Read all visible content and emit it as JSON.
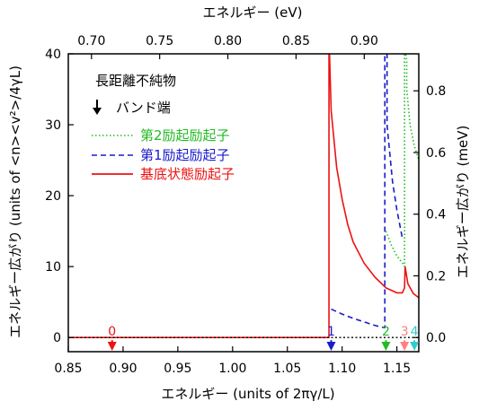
{
  "chart_data": {
    "type": "line",
    "xlabel": "エネルギー (units of 2πγ/L)",
    "ylabel": "エネルギー広がり (units of <n><v²>/4γL)",
    "x2label": "エネルギー (eV)",
    "y2label": "エネルギー広がり (meV)",
    "xlim": [
      0.85,
      1.17
    ],
    "ylim": [
      -2,
      40
    ],
    "x2lim": [
      0.683,
      0.94
    ],
    "y2lim": [
      -0.046,
      0.92
    ],
    "xticks": [
      "0.85",
      "0.90",
      "0.95",
      "1.00",
      "1.05",
      "1.10",
      "1.15"
    ],
    "yticks": [
      "0",
      "10",
      "20",
      "30",
      "40"
    ],
    "x2ticks": [
      "0.70",
      "0.75",
      "0.80",
      "0.85",
      "0.90"
    ],
    "y2ticks": [
      "0.0",
      "0.2",
      "0.4",
      "0.6",
      "0.8"
    ],
    "legend": {
      "title": "長距離不純物",
      "entries": [
        {
          "label": "バンド端",
          "style": "arrow",
          "color": "#000000"
        },
        {
          "label": "第2励起励起子",
          "style": "dotted",
          "color": "#22bb22"
        },
        {
          "label": "第1励起励起子",
          "style": "dashed",
          "color": "#1a1acc"
        },
        {
          "label": "基底状態励起子",
          "style": "solid",
          "color": "#ee1111"
        }
      ]
    },
    "band_edges": [
      {
        "label": "0",
        "x": 0.89,
        "color": "#ee1111"
      },
      {
        "label": "1",
        "x": 1.09,
        "color": "#1a1acc"
      },
      {
        "label": "2",
        "x": 1.14,
        "color": "#22bb22"
      },
      {
        "label": "3",
        "x": 1.157,
        "color": "#ff8080"
      },
      {
        "label": "4",
        "x": 1.166,
        "color": "#33cccc"
      }
    ],
    "series": [
      {
        "name": "基底状態励起子",
        "style": "solid",
        "color": "#ee1111",
        "x": [
          0.85,
          1.088,
          1.088,
          1.0885,
          1.09,
          1.095,
          1.1,
          1.105,
          1.11,
          1.12,
          1.13,
          1.14,
          1.15,
          1.155,
          1.157,
          1.1575,
          1.16,
          1.165,
          1.17
        ],
        "y": [
          0,
          0,
          40,
          40,
          32,
          24,
          19.5,
          16,
          13.5,
          10.5,
          8.5,
          7,
          6.3,
          6.3,
          7,
          10,
          7.6,
          6.2,
          5.6
        ]
      },
      {
        "name": "第1励起励起子",
        "style": "dashed",
        "color": "#1a1acc",
        "x": [
          1.09,
          1.1,
          1.11,
          1.12,
          1.13,
          1.138,
          1.139,
          1.139,
          1.141,
          1.141,
          1.146,
          1.15,
          1.155
        ],
        "y": [
          4,
          3.3,
          2.7,
          2.2,
          1.7,
          1.4,
          1.4,
          40,
          40,
          30,
          22,
          18,
          14
        ]
      },
      {
        "name": "第2励起励起子",
        "style": "dotted",
        "color": "#22bb22",
        "x": [
          1.14,
          1.145,
          1.15,
          1.155,
          1.157,
          1.157,
          1.158,
          1.159,
          1.159,
          1.162,
          1.166,
          1.17
        ],
        "y": [
          15,
          13,
          11.5,
          10.5,
          10,
          40,
          40,
          39,
          35,
          30,
          27,
          25
        ]
      }
    ]
  }
}
